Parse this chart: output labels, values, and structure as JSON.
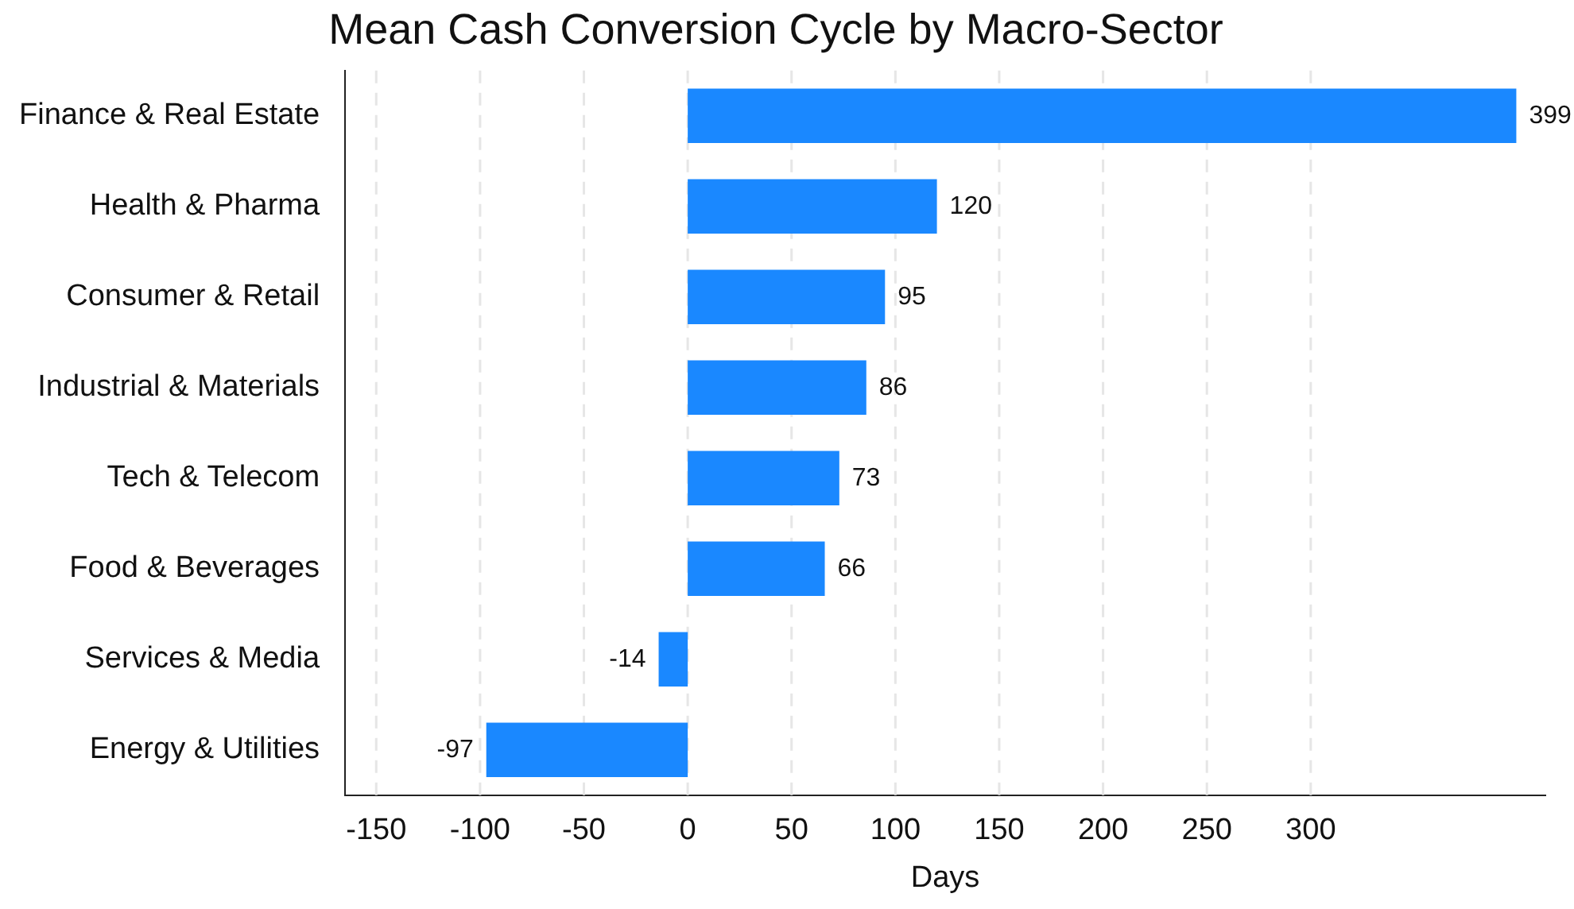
{
  "chart_data": {
    "type": "bar",
    "orientation": "horizontal",
    "title": "Mean Cash Conversion Cycle by Macro-Sector",
    "xlabel": "Days",
    "categories": [
      "Finance & Real Estate",
      "Health & Pharma",
      "Consumer & Retail",
      "Industrial & Materials",
      "Tech & Telecom",
      "Food & Beverages",
      "Services & Media",
      "Energy & Utilities"
    ],
    "values": [
      399,
      120,
      95,
      86,
      73,
      66,
      -14,
      -97
    ],
    "color": "#1a88ff",
    "xlim": [
      -165,
      413
    ],
    "xticks": [
      -150,
      -100,
      -50,
      0,
      50,
      100,
      150,
      200,
      250,
      300
    ],
    "grid": "x",
    "data_labels": true,
    "legend": false
  }
}
